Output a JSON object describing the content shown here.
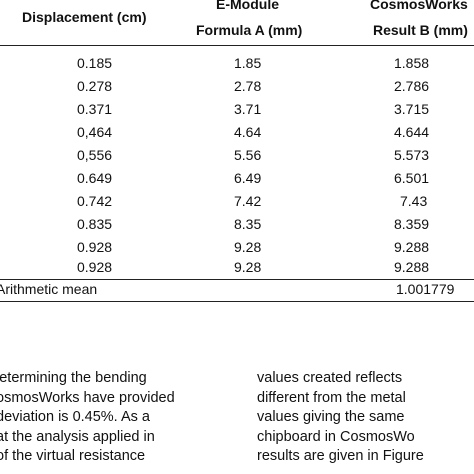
{
  "table": {
    "headers": {
      "displacement": "Displacement (cm)",
      "formula_a_line1": "E-Module",
      "formula_a_line2": "Formula A (mm)",
      "result_b_line1": "CosmosWorks",
      "result_b_line2": "Result B (mm)"
    },
    "rows": [
      {
        "displacement": "0.185",
        "formula_a": "1.85",
        "result_b": "1.858"
      },
      {
        "displacement": "0.278",
        "formula_a": "2.78",
        "result_b": "2.786"
      },
      {
        "displacement": "0.371",
        "formula_a": "3.71",
        "result_b": "3.715"
      },
      {
        "displacement": "0,464",
        "formula_a": "4.64",
        "result_b": "4.644"
      },
      {
        "displacement": "0,556",
        "formula_a": "5.56",
        "result_b": "5.573"
      },
      {
        "displacement": "0.649",
        "formula_a": "6.49",
        "result_b": "6.501"
      },
      {
        "displacement": "0.742",
        "formula_a": "7.42",
        "result_b": "7.43"
      },
      {
        "displacement": "0.835",
        "formula_a": "8.35",
        "result_b": "8.359"
      },
      {
        "displacement": "0.928",
        "formula_a": "9.28",
        "result_b": "9.288"
      },
      {
        "displacement": "0.928",
        "formula_a": "9.28",
        "result_b": "9.288"
      }
    ],
    "mean_label": "Arithmetic mean",
    "mean_value": "1.001779"
  },
  "body_text": {
    "left_column": [
      "letermining the bending",
      "osmosWorks have provided",
      "deviation is 0.45%. As a",
      "at the analysis applied in",
      "of the virtual resistance"
    ],
    "right_column": [
      "values created reflects",
      "different from the metal",
      "values giving the same",
      "chipboard in CosmosWo",
      "results are given in Figure"
    ]
  }
}
